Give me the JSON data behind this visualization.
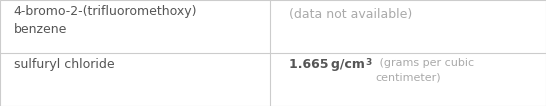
{
  "col_split": 0.495,
  "background": "#ffffff",
  "border_color": "#cccccc",
  "text_color_dark": "#555555",
  "text_color_light": "#aaaaaa",
  "fontsize_main": 9.0,
  "fontsize_small": 8.0,
  "fontsize_sup": 6.5,
  "row1_col1": "4-bromo-2-(trifluoromethoxy)\nbenzene",
  "row1_col2_text": "(data not available)",
  "row2_col1": "sulfuryl chloride",
  "row2_col2_bold": "1.665 g/cm",
  "row2_col2_sup": "3",
  "row2_col2_suffix": " (grams per cubic\ncentimeter)"
}
